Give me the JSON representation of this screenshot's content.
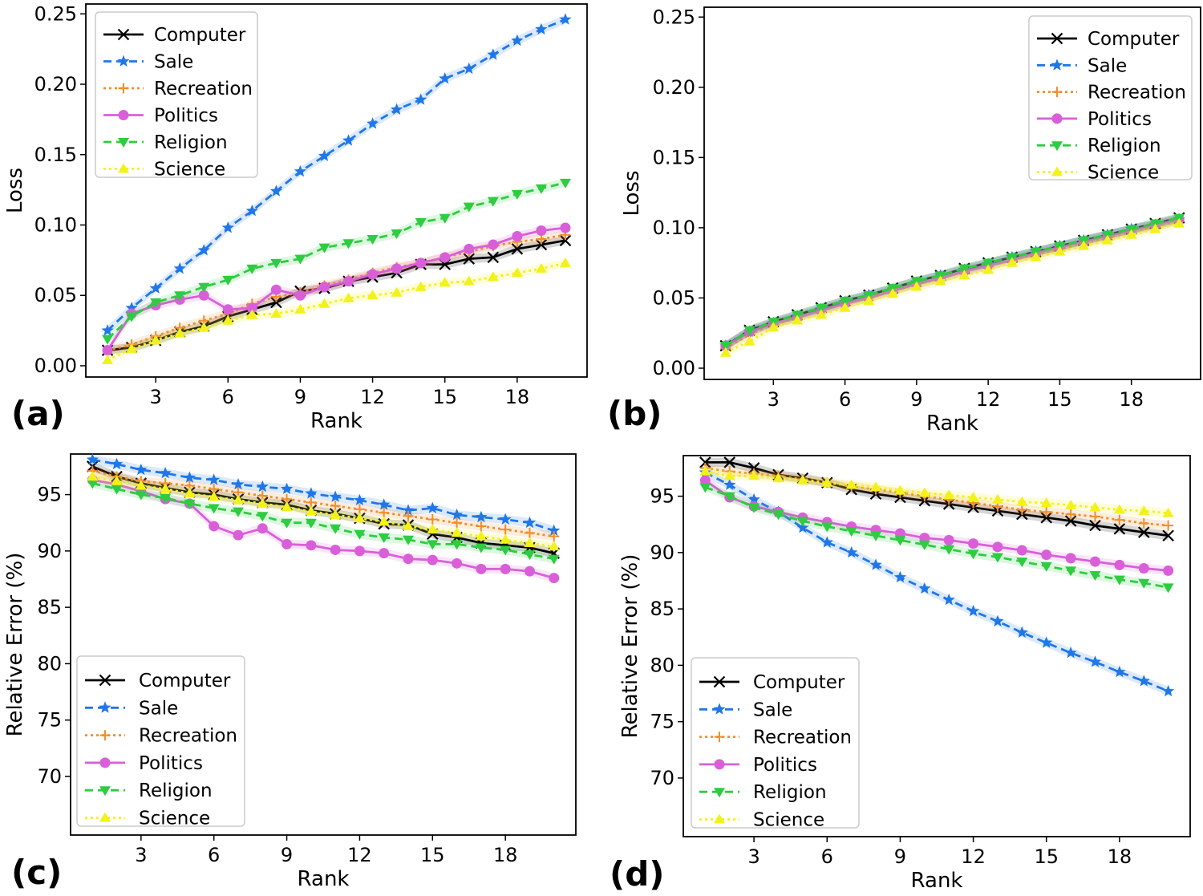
{
  "chart_data": [
    {
      "panel_label": "(a)",
      "type": "line",
      "xlabel": "Rank",
      "ylabel": "Loss",
      "xlim": [
        0.1,
        20.9
      ],
      "ylim": [
        -0.008,
        0.257
      ],
      "xticks": [
        3,
        6,
        9,
        12,
        15,
        18
      ],
      "xtick_labels": [
        "3",
        "6",
        "9",
        "12",
        "15",
        "18"
      ],
      "yticks": [
        0,
        0.05,
        0.1,
        0.15,
        0.2,
        0.25
      ],
      "ytick_labels": [
        "0.00",
        "0.05",
        "0.10",
        "0.15",
        "0.20",
        "0.25"
      ],
      "legend": "top-left",
      "x": [
        1,
        2,
        3,
        4,
        5,
        6,
        7,
        8,
        9,
        10,
        11,
        12,
        13,
        14,
        15,
        16,
        17,
        18,
        19,
        20
      ],
      "series": [
        {
          "name": "Computer",
          "values": [
            0.011,
            0.013,
            0.018,
            0.024,
            0.028,
            0.035,
            0.04,
            0.045,
            0.053,
            0.055,
            0.06,
            0.063,
            0.066,
            0.072,
            0.072,
            0.076,
            0.077,
            0.083,
            0.086,
            0.089
          ]
        },
        {
          "name": "Sale",
          "values": [
            0.025,
            0.041,
            0.055,
            0.069,
            0.082,
            0.098,
            0.11,
            0.124,
            0.138,
            0.149,
            0.16,
            0.172,
            0.182,
            0.189,
            0.204,
            0.211,
            0.221,
            0.231,
            0.239,
            0.246
          ]
        },
        {
          "name": "Recreation",
          "values": [
            0.011,
            0.015,
            0.021,
            0.027,
            0.032,
            0.037,
            0.044,
            0.049,
            0.052,
            0.057,
            0.061,
            0.066,
            0.07,
            0.073,
            0.077,
            0.081,
            0.085,
            0.088,
            0.09,
            0.093
          ]
        },
        {
          "name": "Politics",
          "values": [
            0.011,
            0.037,
            0.043,
            0.047,
            0.05,
            0.04,
            0.041,
            0.054,
            0.05,
            0.056,
            0.06,
            0.065,
            0.069,
            0.073,
            0.077,
            0.083,
            0.086,
            0.092,
            0.096,
            0.098
          ]
        },
        {
          "name": "Religion",
          "values": [
            0.019,
            0.035,
            0.045,
            0.05,
            0.056,
            0.061,
            0.069,
            0.073,
            0.076,
            0.084,
            0.087,
            0.09,
            0.094,
            0.102,
            0.105,
            0.113,
            0.117,
            0.122,
            0.126,
            0.13
          ]
        },
        {
          "name": "Science",
          "values": [
            0.004,
            0.012,
            0.018,
            0.023,
            0.027,
            0.032,
            0.036,
            0.037,
            0.04,
            0.044,
            0.048,
            0.05,
            0.052,
            0.056,
            0.059,
            0.06,
            0.063,
            0.066,
            0.069,
            0.073
          ]
        }
      ]
    },
    {
      "panel_label": "(b)",
      "type": "line",
      "xlabel": "Rank",
      "ylabel": "Loss",
      "xlim": [
        0.1,
        20.9
      ],
      "ylim": [
        -0.008,
        0.257
      ],
      "xticks": [
        3,
        6,
        9,
        12,
        15,
        18
      ],
      "xtick_labels": [
        "3",
        "6",
        "9",
        "12",
        "15",
        "18"
      ],
      "yticks": [
        0,
        0.05,
        0.1,
        0.15,
        0.2,
        0.25
      ],
      "ytick_labels": [
        "0.00",
        "0.05",
        "0.10",
        "0.15",
        "0.20",
        "0.25"
      ],
      "legend": "top-right",
      "x": [
        1,
        2,
        3,
        4,
        5,
        6,
        7,
        8,
        9,
        10,
        11,
        12,
        13,
        14,
        15,
        16,
        17,
        18,
        19,
        20
      ],
      "series": [
        {
          "name": "Computer",
          "values": [
            0.016,
            0.027,
            0.033,
            0.038,
            0.043,
            0.048,
            0.052,
            0.057,
            0.062,
            0.066,
            0.071,
            0.075,
            0.079,
            0.083,
            0.087,
            0.091,
            0.095,
            0.099,
            0.103,
            0.107
          ]
        },
        {
          "name": "Sale",
          "values": [
            0.016,
            0.026,
            0.032,
            0.037,
            0.042,
            0.047,
            0.052,
            0.056,
            0.061,
            0.066,
            0.07,
            0.074,
            0.079,
            0.083,
            0.087,
            0.091,
            0.095,
            0.099,
            0.102,
            0.106
          ]
        },
        {
          "name": "Recreation",
          "values": [
            0.014,
            0.024,
            0.031,
            0.036,
            0.041,
            0.046,
            0.05,
            0.055,
            0.06,
            0.064,
            0.069,
            0.073,
            0.077,
            0.081,
            0.085,
            0.089,
            0.093,
            0.097,
            0.101,
            0.105
          ]
        },
        {
          "name": "Politics",
          "values": [
            0.016,
            0.026,
            0.032,
            0.036,
            0.041,
            0.046,
            0.05,
            0.055,
            0.06,
            0.064,
            0.069,
            0.073,
            0.077,
            0.082,
            0.086,
            0.09,
            0.094,
            0.098,
            0.102,
            0.106
          ]
        },
        {
          "name": "Religion",
          "values": [
            0.016,
            0.027,
            0.033,
            0.038,
            0.043,
            0.048,
            0.052,
            0.057,
            0.062,
            0.066,
            0.071,
            0.075,
            0.079,
            0.083,
            0.087,
            0.091,
            0.095,
            0.099,
            0.103,
            0.107
          ]
        },
        {
          "name": "Science",
          "values": [
            0.011,
            0.019,
            0.029,
            0.034,
            0.038,
            0.043,
            0.048,
            0.053,
            0.058,
            0.062,
            0.066,
            0.07,
            0.075,
            0.079,
            0.083,
            0.087,
            0.091,
            0.095,
            0.099,
            0.103
          ]
        }
      ]
    },
    {
      "panel_label": "(c)",
      "type": "line",
      "xlabel": "Rank",
      "ylabel": "Relative Error (%)",
      "xlim": [
        0.1,
        20.9
      ],
      "ylim": [
        64.8,
        98.6
      ],
      "xticks": [
        3,
        6,
        9,
        12,
        15,
        18
      ],
      "xtick_labels": [
        "3",
        "6",
        "9",
        "12",
        "15",
        "18"
      ],
      "yticks": [
        70,
        75,
        80,
        85,
        90,
        95
      ],
      "ytick_labels": [
        "70",
        "75",
        "80",
        "85",
        "90",
        "95"
      ],
      "legend": "lower-left",
      "x": [
        1,
        2,
        3,
        4,
        5,
        6,
        7,
        8,
        9,
        10,
        11,
        12,
        13,
        14,
        15,
        16,
        17,
        18,
        19,
        20
      ],
      "series": [
        {
          "name": "Computer",
          "values": [
            97.5,
            96.6,
            96.0,
            95.6,
            95.2,
            95.0,
            94.6,
            94.3,
            94.1,
            93.6,
            93.3,
            92.9,
            92.4,
            92.3,
            91.5,
            91.2,
            90.7,
            90.5,
            90.3,
            89.8
          ]
        },
        {
          "name": "Sale",
          "values": [
            98.1,
            97.7,
            97.2,
            96.9,
            96.5,
            96.3,
            95.9,
            95.7,
            95.5,
            95.1,
            94.8,
            94.5,
            94.1,
            93.6,
            93.8,
            93.2,
            93.0,
            92.8,
            92.5,
            91.8
          ]
        },
        {
          "name": "Recreation",
          "values": [
            97.1,
            96.6,
            96.2,
            96.0,
            95.8,
            95.5,
            95.2,
            94.9,
            94.6,
            94.3,
            94.0,
            93.7,
            93.4,
            93.1,
            92.8,
            92.5,
            92.2,
            91.9,
            91.6,
            91.3
          ]
        },
        {
          "name": "Politics",
          "values": [
            96.3,
            95.9,
            95.3,
            94.6,
            94.2,
            92.2,
            91.4,
            92.0,
            90.6,
            90.5,
            90.1,
            90.0,
            89.8,
            89.3,
            89.2,
            88.9,
            88.4,
            88.4,
            88.2,
            87.6
          ]
        },
        {
          "name": "Religion",
          "values": [
            96.0,
            95.5,
            95.0,
            94.7,
            94.2,
            93.8,
            93.5,
            93.1,
            92.5,
            92.5,
            92.0,
            91.5,
            91.2,
            91.0,
            90.6,
            90.6,
            90.3,
            90.1,
            89.7,
            89.3
          ]
        },
        {
          "name": "Science",
          "values": [
            96.6,
            96.2,
            95.8,
            95.5,
            95.1,
            94.8,
            94.5,
            94.2,
            93.9,
            93.5,
            93.2,
            92.9,
            92.6,
            92.2,
            91.9,
            91.6,
            91.3,
            91.0,
            90.7,
            90.4
          ]
        }
      ]
    },
    {
      "panel_label": "(d)",
      "type": "line",
      "xlabel": "Rank",
      "ylabel": "Relative Error (%)",
      "xlim": [
        0.1,
        20.9
      ],
      "ylim": [
        64.8,
        98.6
      ],
      "xticks": [
        3,
        6,
        9,
        12,
        15,
        18
      ],
      "xtick_labels": [
        "3",
        "6",
        "9",
        "12",
        "15",
        "18"
      ],
      "yticks": [
        70,
        75,
        80,
        85,
        90,
        95
      ],
      "ytick_labels": [
        "70",
        "75",
        "80",
        "85",
        "90",
        "95"
      ],
      "legend": "lower-left",
      "x": [
        1,
        2,
        3,
        4,
        5,
        6,
        7,
        8,
        9,
        10,
        11,
        12,
        13,
        14,
        15,
        16,
        17,
        18,
        19,
        20
      ],
      "series": [
        {
          "name": "Computer",
          "values": [
            98.0,
            98.0,
            97.5,
            96.9,
            96.6,
            96.2,
            95.6,
            95.2,
            94.9,
            94.6,
            94.3,
            94.0,
            93.7,
            93.4,
            93.1,
            92.8,
            92.4,
            92.1,
            91.8,
            91.5
          ]
        },
        {
          "name": "Sale",
          "values": [
            97.1,
            96.0,
            94.7,
            93.6,
            92.2,
            90.9,
            90.0,
            88.9,
            87.8,
            86.8,
            85.8,
            84.8,
            83.9,
            82.9,
            82.0,
            81.1,
            80.3,
            79.4,
            78.6,
            77.7
          ]
        },
        {
          "name": "Recreation",
          "values": [
            97.5,
            97.2,
            97.0,
            96.8,
            96.5,
            96.2,
            95.9,
            95.6,
            95.3,
            95.0,
            94.7,
            94.4,
            94.1,
            93.8,
            93.6,
            93.4,
            93.2,
            92.9,
            92.6,
            92.4
          ]
        },
        {
          "name": "Politics",
          "values": [
            96.4,
            94.9,
            94.1,
            93.6,
            93.1,
            92.7,
            92.3,
            92.0,
            91.7,
            91.3,
            91.1,
            90.8,
            90.5,
            90.2,
            89.8,
            89.5,
            89.2,
            88.9,
            88.6,
            88.4
          ]
        },
        {
          "name": "Religion",
          "values": [
            95.8,
            95.0,
            94.0,
            93.4,
            92.8,
            92.3,
            91.9,
            91.5,
            91.1,
            90.7,
            90.3,
            89.9,
            89.6,
            89.2,
            88.8,
            88.4,
            88.0,
            87.6,
            87.3,
            86.9
          ]
        },
        {
          "name": "Science",
          "values": [
            97.2,
            96.8,
            96.8,
            96.6,
            96.4,
            96.2,
            96.0,
            95.8,
            95.5,
            95.3,
            95.1,
            94.9,
            94.7,
            94.5,
            94.4,
            94.2,
            94.0,
            93.8,
            93.7,
            93.5
          ]
        }
      ]
    }
  ],
  "styles": {
    "Computer": {
      "color": "#000000",
      "marker": "x",
      "dash": "solid"
    },
    "Sale": {
      "color": "#1f77e8",
      "marker": "star",
      "dash": "dashed"
    },
    "Recreation": {
      "color": "#f28e2b",
      "marker": "plus",
      "dash": "dotted"
    },
    "Politics": {
      "color": "#d95fd9",
      "marker": "circle",
      "dash": "solid"
    },
    "Religion": {
      "color": "#2ecc40",
      "marker": "triangle-down",
      "dash": "dashed"
    },
    "Science": {
      "color": "#f2f21a",
      "marker": "triangle-up",
      "dash": "dotted"
    }
  }
}
